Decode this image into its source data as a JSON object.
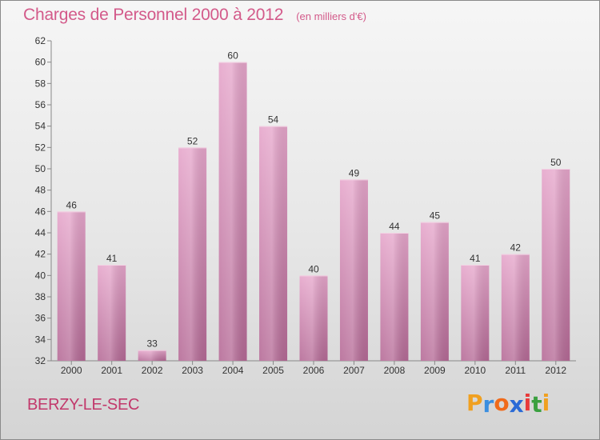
{
  "header": {
    "title": "Charges de Personnel 2000 à 2012",
    "subtitle": "(en milliers d'€)"
  },
  "footer": {
    "commune": "BERZY-LE-SEC"
  },
  "logo": {
    "letters": [
      "P",
      "r",
      "o",
      "x",
      "i",
      "t",
      "i"
    ],
    "colors": [
      "#f0a020",
      "#3a8ee0",
      "#f06a1a",
      "#2a6ad6",
      "#e83a3a",
      "#3aa040",
      "#f0a020"
    ]
  },
  "colors": {
    "bar_top": "#e6a6cb",
    "bar_bottom": "#b56a96",
    "title": "#d35a8a",
    "commune": "#c2386b"
  },
  "chart_data": {
    "type": "bar",
    "categories": [
      "2000",
      "2001",
      "2002",
      "2003",
      "2004",
      "2005",
      "2006",
      "2007",
      "2008",
      "2009",
      "2010",
      "2011",
      "2012"
    ],
    "values": [
      46,
      41,
      33,
      52,
      60,
      54,
      40,
      49,
      44,
      45,
      41,
      42,
      50
    ],
    "ylim": [
      32,
      62
    ],
    "yticks": [
      32,
      34,
      36,
      38,
      40,
      42,
      44,
      46,
      48,
      50,
      52,
      54,
      56,
      58,
      60,
      62
    ],
    "grid": false,
    "data_labels": true
  }
}
